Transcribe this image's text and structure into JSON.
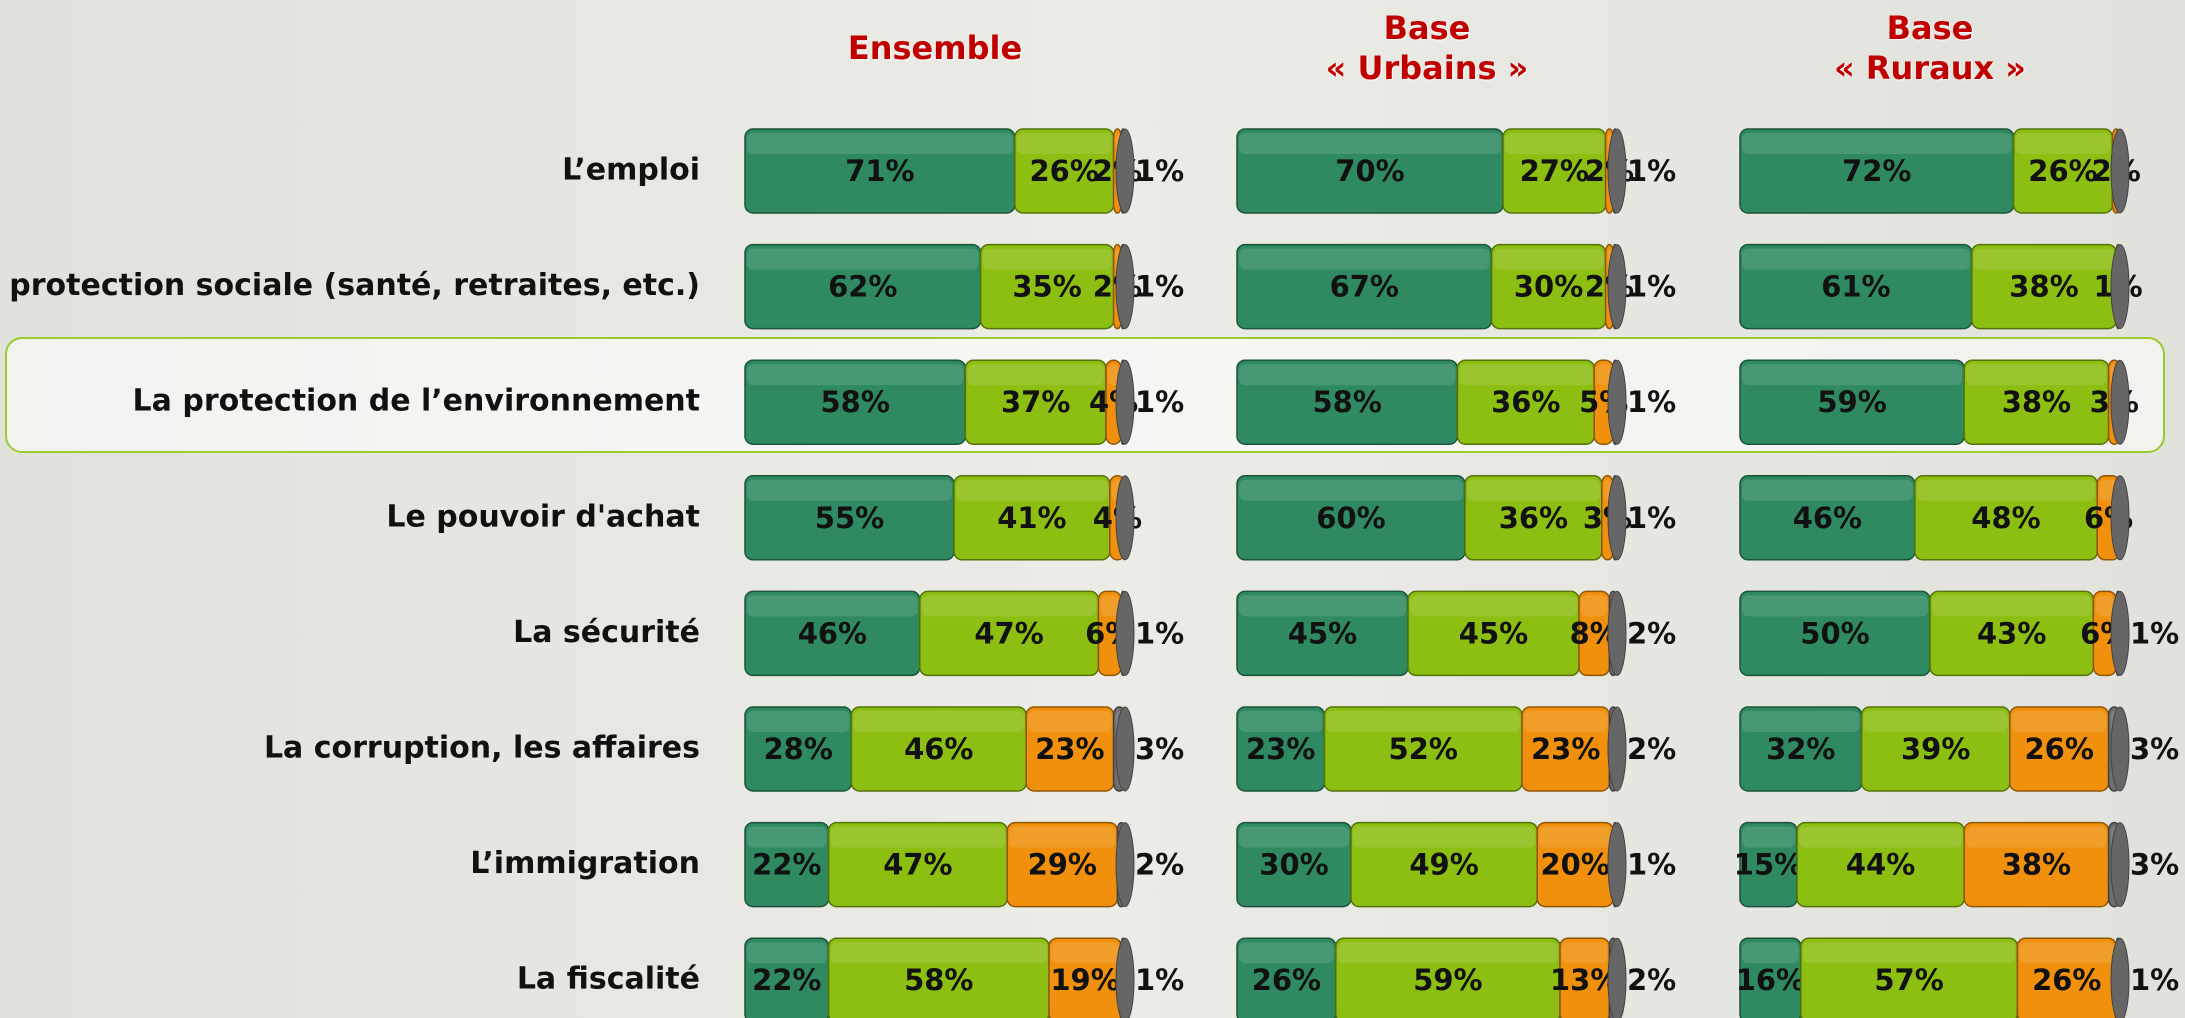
{
  "chart_data": {
    "type": "bar",
    "stacked": true,
    "categories": [
      "L’emploi",
      "La protection sociale (santé, retraites, etc.)",
      "La protection de l’environnement",
      "Le pouvoir d'achat",
      "La sécurité",
      "La corruption, les affaires",
      "L’immigration",
      "La fiscalité"
    ],
    "panels": [
      {
        "title": "Ensemble",
        "series": [
          {
            "color": "#2f8a62",
            "values": [
              71,
              62,
              58,
              55,
              46,
              28,
              22,
              22
            ],
            "value_labels": [
              "71%",
              "62%",
              "58%",
              "55%",
              "46%",
              "28%",
              "22%",
              "22%"
            ]
          },
          {
            "color": "#8dbe12",
            "values": [
              26,
              35,
              37,
              41,
              47,
              46,
              47,
              58
            ],
            "value_labels": [
              "26%",
              "35%",
              "37%",
              "41%",
              "47%",
              "46%",
              "47%",
              "58%"
            ]
          },
          {
            "color": "#f0900c",
            "values": [
              2,
              2,
              4,
              4,
              6,
              23,
              29,
              19
            ],
            "value_labels": [
              "2%",
              "2%",
              "4%",
              "4%",
              "6%",
              "23%",
              "29%",
              "19%"
            ]
          },
          {
            "color": "#6e6e6e",
            "values": [
              1,
              1,
              1,
              null,
              1,
              3,
              2,
              1
            ],
            "value_labels": [
              "1%",
              "1%",
              "1%",
              null,
              "1%",
              "3%",
              "2%",
              "1%"
            ]
          }
        ]
      },
      {
        "title": "Base « Urbains »",
        "series": [
          {
            "color": "#2f8a62",
            "values": [
              70,
              67,
              58,
              60,
              45,
              23,
              30,
              26
            ],
            "value_labels": [
              "70%",
              "67%",
              "58%",
              "60%",
              "45%",
              "23%",
              "30%",
              "26%"
            ]
          },
          {
            "color": "#8dbe12",
            "values": [
              27,
              30,
              36,
              36,
              45,
              52,
              49,
              59
            ],
            "value_labels": [
              "27%",
              "30%",
              "36%",
              "36%",
              "45%",
              "52%",
              "49%",
              "59%"
            ]
          },
          {
            "color": "#f0900c",
            "values": [
              2,
              2,
              5,
              3,
              8,
              23,
              20,
              13
            ],
            "value_labels": [
              "2%",
              "2%",
              "5%",
              "3%",
              "8%",
              "23%",
              "20%",
              "13%"
            ]
          },
          {
            "color": "#6e6e6e",
            "values": [
              1,
              1,
              1,
              1,
              2,
              2,
              1,
              2
            ],
            "value_labels": [
              "1%",
              "1%",
              "1%",
              "1%",
              "2%",
              "2%",
              "1%",
              "2%"
            ]
          }
        ]
      },
      {
        "title": "Base « Ruraux »",
        "series": [
          {
            "color": "#2f8a62",
            "values": [
              72,
              61,
              59,
              46,
              50,
              32,
              15,
              16
            ],
            "value_labels": [
              "72%",
              "61%",
              "59%",
              "46%",
              "50%",
              "32%",
              "15%",
              "16%"
            ]
          },
          {
            "color": "#8dbe12",
            "values": [
              26,
              38,
              38,
              48,
              43,
              39,
              44,
              57
            ],
            "value_labels": [
              "26%",
              "38%",
              "38%",
              "48%",
              "43%",
              "39%",
              "44%",
              "57%"
            ]
          },
          {
            "color": "#f0900c",
            "values": [
              2,
              1,
              3,
              6,
              6,
              26,
              38,
              26
            ],
            "value_labels": [
              "2%",
              "1%",
              "3%",
              "6%",
              "6%",
              "26%",
              "38%",
              "26%"
            ]
          },
          {
            "color": "#6e6e6e",
            "values": [
              null,
              null,
              null,
              null,
              1,
              3,
              3,
              1
            ],
            "value_labels": [
              null,
              null,
              null,
              null,
              "1%",
              "3%",
              "3%",
              "1%"
            ]
          }
        ]
      }
    ]
  }
}
